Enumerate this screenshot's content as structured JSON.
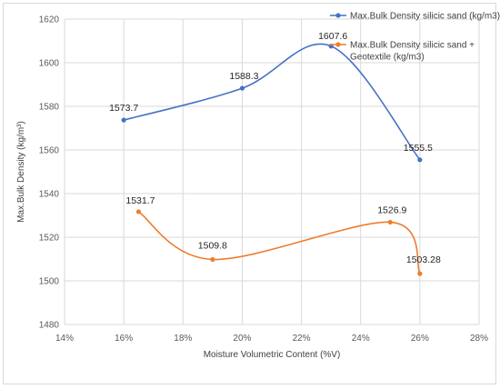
{
  "chart_data": {
    "type": "line",
    "title": "",
    "xlabel": "Moisture Volumetric Content (%V)",
    "ylabel": "Max.Bulk Density (kg/m³)",
    "xlim": [
      14,
      28
    ],
    "ylim": [
      1480,
      1620
    ],
    "x_ticks": [
      "14%",
      "16%",
      "18%",
      "20%",
      "22%",
      "24%",
      "26%",
      "28%"
    ],
    "y_ticks": [
      "1480",
      "1500",
      "1520",
      "1540",
      "1560",
      "1580",
      "1600",
      "1620"
    ],
    "grid": true,
    "smooth": true,
    "legend_position": "top-right",
    "series": [
      {
        "name": "Max.Bulk Density silicic sand (kg/m3)",
        "color": "#4472c4",
        "points": [
          {
            "x": 16,
            "y": 1573.7,
            "label": "1573.7"
          },
          {
            "x": 20,
            "y": 1588.3,
            "label": "1588.3"
          },
          {
            "x": 23,
            "y": 1607.6,
            "label": "1607.6"
          },
          {
            "x": 26,
            "y": 1555.5,
            "label": "1555.5"
          }
        ]
      },
      {
        "name": "Max.Bulk Density silicic sand + Geotextile (kg/m3)",
        "legend_lines": [
          "Max.Bulk Density silicic sand +",
          "Geotextile (kg/m3)"
        ],
        "color": "#ed7d31",
        "points": [
          {
            "x": 16.5,
            "y": 1531.7,
            "label": "1531.7"
          },
          {
            "x": 19,
            "y": 1509.8,
            "label": "1509.8"
          },
          {
            "x": 25,
            "y": 1526.9,
            "label": "1526.9"
          },
          {
            "x": 26,
            "y": 1503.28,
            "label": "1503.28"
          }
        ]
      }
    ]
  }
}
